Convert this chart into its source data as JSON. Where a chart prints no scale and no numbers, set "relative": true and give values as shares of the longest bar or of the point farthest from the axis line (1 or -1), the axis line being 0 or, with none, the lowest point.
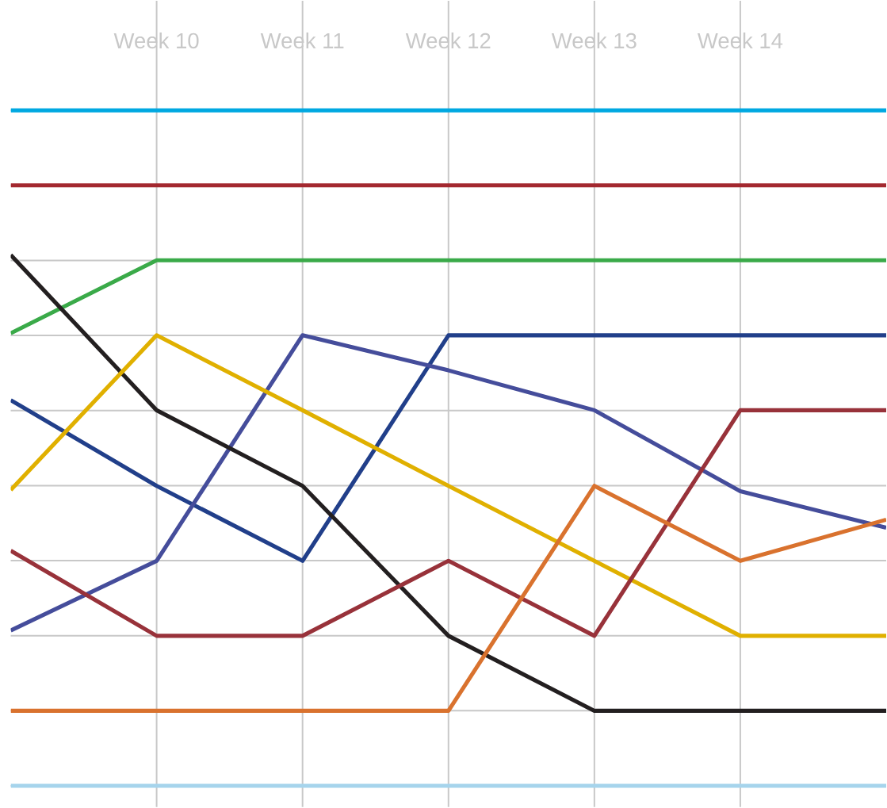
{
  "chart_data": {
    "type": "line",
    "relative": true,
    "grid": true,
    "categories": [
      null,
      "Week 10",
      "Week 11",
      "Week 12",
      "Week 13",
      "Week 14",
      null
    ],
    "series": [
      {
        "color": "#00a8e1",
        "values": [
          1,
          1,
          1,
          1,
          1,
          1,
          1
        ]
      },
      {
        "color": "#a3282f",
        "values": [
          0.889,
          0.889,
          0.889,
          0.889,
          0.889,
          0.889,
          0.889
        ]
      },
      {
        "color": "#3aaa49",
        "values": [
          0.67,
          0.778,
          0.778,
          0.778,
          0.778,
          0.778,
          0.778
        ]
      },
      {
        "color": "#213f8a",
        "values": [
          0.571,
          0.444,
          0.333,
          0.667,
          0.667,
          0.667,
          0.667
        ]
      },
      {
        "color": "#454d9b",
        "values": [
          0.23,
          0.333,
          0.667,
          0.615,
          0.556,
          0.436,
          0.382
        ]
      },
      {
        "color": "#231f20",
        "values": [
          0.786,
          0.556,
          0.444,
          0.222,
          0.111,
          0.111,
          0.111
        ]
      },
      {
        "color": "#e0b000",
        "values": [
          0.438,
          0.667,
          0.556,
          0.444,
          0.333,
          0.222,
          0.222
        ]
      },
      {
        "color": "#98323a",
        "values": [
          0.348,
          0.222,
          0.222,
          0.333,
          0.222,
          0.556,
          0.556
        ]
      },
      {
        "color": "#d9722e",
        "values": [
          0.111,
          0.111,
          0.111,
          0.111,
          0.444,
          0.333,
          0.394
        ]
      },
      {
        "color": "#a6d4ec",
        "values": [
          0,
          0,
          0,
          0,
          0,
          0,
          0
        ]
      }
    ]
  }
}
